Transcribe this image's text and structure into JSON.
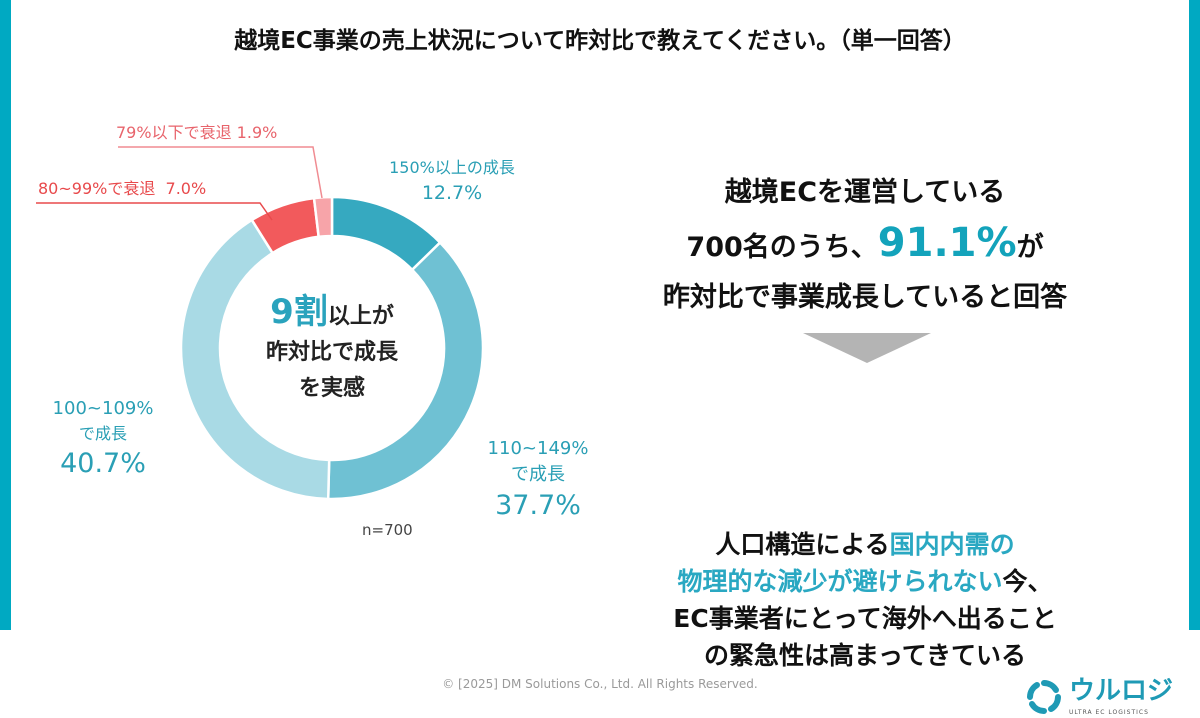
{
  "title": "越境EC事業の売上状況について昨対比で教えてください。（単一回答）",
  "chart_data": {
    "type": "pie",
    "variant": "donut",
    "title": "越境EC事業の売上状況について昨対比で教えてください。（単一回答）",
    "start_angle": "12 o'clock",
    "direction": "clockwise",
    "sample": "n=700",
    "slices": [
      {
        "key": "s150",
        "label": "150%以上の成長",
        "value": 12.7,
        "value_text": "12.7%",
        "color": "#36a9c0"
      },
      {
        "key": "s110",
        "label": "110~149%で成長",
        "label_lines": [
          "110~149%",
          "で成長"
        ],
        "value": 37.7,
        "value_text": "37.7%",
        "color": "#6fc1d3"
      },
      {
        "key": "s100",
        "label": "100~109%で成長",
        "label_lines": [
          "100~109%",
          "で成長"
        ],
        "value": 40.7,
        "value_text": "40.7%",
        "color": "#a9dae5"
      },
      {
        "key": "s80",
        "label": "80~99%で衰退",
        "value": 7.0,
        "value_text": "7.0%",
        "color": "#f25a5c"
      },
      {
        "key": "s79",
        "label": "79%以下で衰退",
        "value": 1.9,
        "value_text": "1.9%",
        "color": "#f7a4a9"
      }
    ],
    "center": {
      "highlight": "9割",
      "line1_rest": "以上が",
      "line2": "昨対比で成長",
      "line3": "を実感"
    }
  },
  "summary": {
    "line1": "越境ECを運営している",
    "line2_pre": "700名のうち、",
    "line2_highlight": "91.1%",
    "line2_post": "が",
    "line3": "昨対比で事業成長していると回答",
    "arrow": "down-triangle-icon",
    "conclusion_pre": "人口構造による",
    "conclusion_hl1": "国内内需の",
    "conclusion_hl2": "物理的な減少が避けられない",
    "conclusion_mid": "今、",
    "conclusion_line3": "EC事業者にとって海外へ出ること",
    "conclusion_line4": "の緊急性は高まってきている"
  },
  "footer": {
    "copyright": "© [2025] DM Solutions Co., Ltd. All Rights Reserved.",
    "logo_name": "ウルロジ",
    "logo_sub": "ULTRA EC LOGISTICS"
  },
  "colors": {
    "accent": "#00a9c2",
    "highlight": "#13a3bb",
    "decline": "#e84a4c"
  }
}
